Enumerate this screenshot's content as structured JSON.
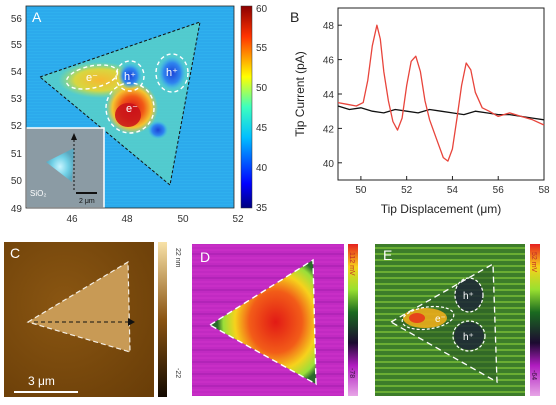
{
  "panels": {
    "a": {
      "letter": "A",
      "x_ticks": [
        "46",
        "48",
        "50",
        "52"
      ],
      "y_ticks": [
        "56",
        "55",
        "54",
        "53",
        "52",
        "51",
        "50",
        "49"
      ],
      "colorbar_ticks": [
        "60",
        "55",
        "50",
        "45",
        "40",
        "35"
      ],
      "region_labels": {
        "e_left": "e⁻",
        "h_mid": "h⁺",
        "h_right": "h⁺",
        "e_center": "e⁻"
      },
      "inset": {
        "substrate": "SiO₂",
        "scale": "2 μm"
      }
    },
    "b": {
      "letter": "B"
    },
    "c": {
      "letter": "C",
      "scale": "3 μm",
      "colorbar_top": "22 nm",
      "colorbar_bottom": "-22"
    },
    "d": {
      "letter": "D",
      "colorbar_top": "112 mV",
      "colorbar_bottom": "-78"
    },
    "e": {
      "letter": "E",
      "colorbar_top": "52 mV",
      "colorbar_bottom": "-64",
      "region_labels": {
        "h_top": "h⁺",
        "e_left": "e⁻",
        "h_bottom": "h⁺"
      }
    }
  },
  "colors": {
    "red_trace": "#e8453c",
    "black_trace": "#111111"
  },
  "chart_data": {
    "type": "line",
    "xlabel": "Tip Displacement (μm)",
    "ylabel": "Tip Current (pA)",
    "xlim": [
      49,
      58
    ],
    "ylim": [
      39,
      49
    ],
    "x_ticks": [
      50,
      52,
      54,
      56,
      58
    ],
    "y_ticks": [
      40,
      42,
      44,
      46,
      48
    ],
    "series": [
      {
        "color": "#e8453c",
        "x": [
          49.0,
          49.4,
          49.8,
          50.1,
          50.3,
          50.5,
          50.7,
          50.85,
          51.0,
          51.2,
          51.4,
          51.6,
          51.8,
          52.0,
          52.2,
          52.4,
          52.6,
          52.8,
          53.0,
          53.3,
          53.6,
          53.8,
          54.0,
          54.2,
          54.4,
          54.6,
          54.8,
          55.0,
          55.3,
          55.6,
          56.0,
          56.5,
          57.0,
          57.5,
          58.0
        ],
        "y": [
          43.5,
          43.4,
          43.3,
          43.5,
          44.8,
          46.8,
          48.0,
          47.2,
          45.3,
          43.6,
          42.4,
          41.9,
          42.6,
          44.5,
          45.9,
          46.2,
          45.3,
          43.6,
          42.5,
          41.4,
          40.3,
          40.1,
          40.8,
          42.6,
          44.5,
          45.8,
          45.4,
          44.1,
          43.2,
          43.0,
          42.7,
          42.9,
          42.7,
          42.5,
          42.2
        ]
      },
      {
        "color": "#111111",
        "x": [
          49.0,
          49.5,
          50.0,
          50.5,
          51.0,
          51.5,
          52.0,
          52.5,
          53.0,
          53.5,
          54.0,
          54.5,
          55.0,
          55.5,
          56.0,
          56.5,
          57.0,
          57.5,
          58.0
        ],
        "y": [
          43.3,
          43.1,
          43.2,
          43.0,
          42.9,
          43.1,
          43.0,
          42.9,
          43.1,
          43.0,
          42.9,
          42.8,
          43.0,
          42.9,
          42.8,
          42.8,
          42.7,
          42.6,
          42.5
        ]
      }
    ]
  }
}
